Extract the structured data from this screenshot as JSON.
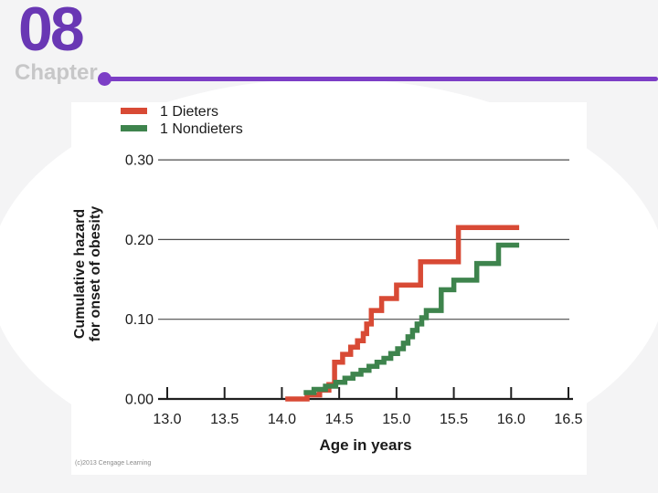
{
  "header": {
    "chapter_number": "08",
    "chapter_label": "Chapter"
  },
  "footer": {
    "copyright": "(c)2013 Cengage Learning"
  },
  "colors": {
    "background_gray": "#f4f4f5",
    "brand_purple": "#6937b4",
    "accent_line_purple": "#7c3ec6",
    "chapter_label_gray": "#c7c7c8",
    "dieters_red": "#d84a35",
    "nondieters_green": "#3e844d",
    "gridline": "#4d4d4d",
    "axis": "#1f1f1f",
    "text": "#1b1b1b"
  },
  "chart_data": {
    "type": "line",
    "subtype": "step-after",
    "title": "",
    "xlabel": "Age in years",
    "ylabel": "Cumulative hazard for onset of obesity",
    "ylabel_lines": [
      "Cumulative hazard",
      "for onset of obesity"
    ],
    "xlim": [
      12.9,
      16.55
    ],
    "ylim": [
      0.0,
      0.32
    ],
    "x_ticks": [
      13.0,
      13.5,
      14.0,
      14.5,
      15.0,
      15.5,
      16.0,
      16.5
    ],
    "x_tick_labels": [
      "13.0",
      "13.5",
      "14.0",
      "14.5",
      "15.0",
      "15.5",
      "16.0",
      "16.5"
    ],
    "y_ticks": [
      0.0,
      0.1,
      0.2,
      0.3
    ],
    "y_tick_labels": [
      "0.00",
      "0.10",
      "0.20",
      "0.30"
    ],
    "grid": "horizontal-at-0.10-0.20-0.30",
    "legend_position": "top-left",
    "series": [
      {
        "name": "1 Dieters",
        "color": "#d84a35",
        "end_x": 16.07,
        "points": [
          [
            14.03,
            0.0
          ],
          [
            14.22,
            0.005
          ],
          [
            14.33,
            0.011
          ],
          [
            14.41,
            0.018
          ],
          [
            14.46,
            0.046
          ],
          [
            14.53,
            0.056
          ],
          [
            14.6,
            0.065
          ],
          [
            14.66,
            0.073
          ],
          [
            14.71,
            0.082
          ],
          [
            14.74,
            0.094
          ],
          [
            14.78,
            0.111
          ],
          [
            14.87,
            0.126
          ],
          [
            15.0,
            0.143
          ],
          [
            15.21,
            0.172
          ],
          [
            15.54,
            0.215
          ]
        ]
      },
      {
        "name": "1 Nondieters",
        "color": "#3e844d",
        "end_x": 16.07,
        "points": [
          [
            14.19,
            0.008
          ],
          [
            14.28,
            0.012
          ],
          [
            14.38,
            0.016
          ],
          [
            14.47,
            0.021
          ],
          [
            14.55,
            0.026
          ],
          [
            14.62,
            0.031
          ],
          [
            14.69,
            0.036
          ],
          [
            14.76,
            0.041
          ],
          [
            14.83,
            0.046
          ],
          [
            14.89,
            0.051
          ],
          [
            14.95,
            0.057
          ],
          [
            15.01,
            0.063
          ],
          [
            15.06,
            0.07
          ],
          [
            15.1,
            0.078
          ],
          [
            15.14,
            0.086
          ],
          [
            15.18,
            0.094
          ],
          [
            15.22,
            0.102
          ],
          [
            15.26,
            0.111
          ],
          [
            15.39,
            0.137
          ],
          [
            15.5,
            0.149
          ],
          [
            15.7,
            0.17
          ],
          [
            15.89,
            0.193
          ]
        ]
      }
    ]
  }
}
